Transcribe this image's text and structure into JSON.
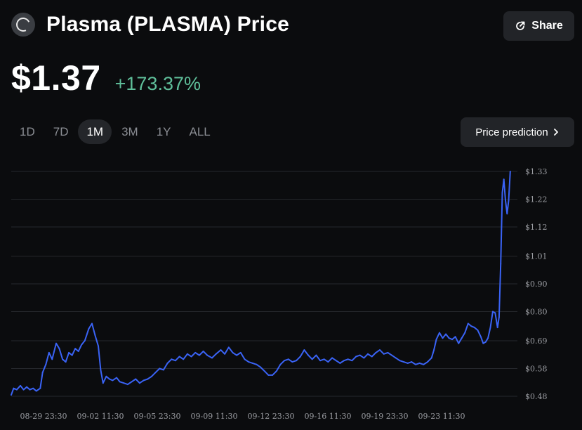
{
  "header": {
    "title": "Plasma (PLASMA) Price",
    "logo_icon": "plasma-logo-icon"
  },
  "share": {
    "label": "Share",
    "icon": "share-icon"
  },
  "price": {
    "value": "$1.37",
    "change": "+173.37%",
    "change_color": "#5fbf9a"
  },
  "periods": [
    {
      "label": "1D",
      "active": false
    },
    {
      "label": "7D",
      "active": false
    },
    {
      "label": "1M",
      "active": true
    },
    {
      "label": "3M",
      "active": false
    },
    {
      "label": "1Y",
      "active": false
    },
    {
      "label": "ALL",
      "active": false
    }
  ],
  "prediction": {
    "label": "Price prediction",
    "icon": "chevron-right-icon"
  },
  "chart_data": {
    "type": "line",
    "line_color": "#3a63f5",
    "ylim": [
      0.48,
      1.33
    ],
    "yticks": [
      {
        "value": 1.33,
        "label": "$1.33"
      },
      {
        "value": 1.225,
        "label": "$1.22"
      },
      {
        "value": 1.12,
        "label": "$1.12"
      },
      {
        "value": 1.01,
        "label": "$1.01"
      },
      {
        "value": 0.905,
        "label": "$0.90"
      },
      {
        "value": 0.8,
        "label": "$0.80"
      },
      {
        "value": 0.69,
        "label": "$0.69"
      },
      {
        "value": 0.585,
        "label": "$0.58"
      },
      {
        "value": 0.48,
        "label": "$0.48"
      }
    ],
    "xticks": [
      "08-29 23:30",
      "09-02 11:30",
      "09-05 23:30",
      "09-09 11:30",
      "09-12 23:30",
      "09-16 11:30",
      "09-19 23:30",
      "09-23 11:30"
    ],
    "xlim": [
      "08-29 11:30",
      "09-25 00:00"
    ],
    "grid": true,
    "legend": "none",
    "series": [
      {
        "points": [
          [
            "08-29 11:30",
            0.485
          ],
          [
            "08-29 14:30",
            0.51
          ],
          [
            "08-29 18:30",
            0.505
          ],
          [
            "08-29 23:00",
            0.52
          ],
          [
            "08-30 03:00",
            0.505
          ],
          [
            "08-30 07:00",
            0.515
          ],
          [
            "08-30 11:00",
            0.505
          ],
          [
            "08-30 15:00",
            0.51
          ],
          [
            "08-30 19:00",
            0.5
          ],
          [
            "08-31 00:00",
            0.51
          ],
          [
            "08-31 03:00",
            0.57
          ],
          [
            "08-31 07:00",
            0.6
          ],
          [
            "08-31 11:00",
            0.645
          ],
          [
            "08-31 15:00",
            0.62
          ],
          [
            "08-31 20:00",
            0.68
          ],
          [
            "09-01 00:00",
            0.66
          ],
          [
            "09-01 04:00",
            0.62
          ],
          [
            "09-01 08:00",
            0.61
          ],
          [
            "09-01 12:00",
            0.645
          ],
          [
            "09-01 16:00",
            0.635
          ],
          [
            "09-01 20:00",
            0.66
          ],
          [
            "09-02 00:00",
            0.65
          ],
          [
            "09-02 04:00",
            0.675
          ],
          [
            "09-02 08:00",
            0.69
          ],
          [
            "09-02 13:00",
            0.735
          ],
          [
            "09-02 17:00",
            0.755
          ],
          [
            "09-02 21:00",
            0.71
          ],
          [
            "09-03 01:00",
            0.67
          ],
          [
            "09-03 04:00",
            0.58
          ],
          [
            "09-03 07:00",
            0.53
          ],
          [
            "09-03 11:00",
            0.555
          ],
          [
            "09-03 15:00",
            0.545
          ],
          [
            "09-03 19:00",
            0.54
          ],
          [
            "09-04 00:00",
            0.55
          ],
          [
            "09-04 04:00",
            0.535
          ],
          [
            "09-04 09:00",
            0.53
          ],
          [
            "09-04 14:00",
            0.525
          ],
          [
            "09-04 19:00",
            0.535
          ],
          [
            "09-05 00:00",
            0.545
          ],
          [
            "09-05 05:00",
            0.53
          ],
          [
            "09-05 10:00",
            0.54
          ],
          [
            "09-05 15:00",
            0.545
          ],
          [
            "09-05 20:00",
            0.555
          ],
          [
            "09-06 01:00",
            0.57
          ],
          [
            "09-06 06:00",
            0.585
          ],
          [
            "09-06 11:00",
            0.58
          ],
          [
            "09-06 16:00",
            0.605
          ],
          [
            "09-06 21:00",
            0.62
          ],
          [
            "09-07 02:00",
            0.615
          ],
          [
            "09-07 07:00",
            0.63
          ],
          [
            "09-07 12:00",
            0.62
          ],
          [
            "09-07 17:00",
            0.64
          ],
          [
            "09-07 22:00",
            0.63
          ],
          [
            "09-08 03:00",
            0.645
          ],
          [
            "09-08 08:00",
            0.635
          ],
          [
            "09-08 13:00",
            0.65
          ],
          [
            "09-08 18:00",
            0.635
          ],
          [
            "09-09 00:00",
            0.625
          ],
          [
            "09-09 05:00",
            0.64
          ],
          [
            "09-09 11:00",
            0.655
          ],
          [
            "09-09 16:00",
            0.64
          ],
          [
            "09-09 21:00",
            0.665
          ],
          [
            "09-10 02:00",
            0.645
          ],
          [
            "09-10 07:00",
            0.635
          ],
          [
            "09-10 12:00",
            0.645
          ],
          [
            "09-10 17:00",
            0.62
          ],
          [
            "09-10 22:00",
            0.61
          ],
          [
            "09-11 03:00",
            0.605
          ],
          [
            "09-11 08:00",
            0.6
          ],
          [
            "09-11 13:00",
            0.59
          ],
          [
            "09-11 18:00",
            0.575
          ],
          [
            "09-11 23:00",
            0.56
          ],
          [
            "09-12 04:00",
            0.56
          ],
          [
            "09-12 09:00",
            0.575
          ],
          [
            "09-12 14:00",
            0.6
          ],
          [
            "09-12 19:00",
            0.615
          ],
          [
            "09-13 00:00",
            0.62
          ],
          [
            "09-13 05:00",
            0.61
          ],
          [
            "09-13 10:00",
            0.615
          ],
          [
            "09-13 15:00",
            0.63
          ],
          [
            "09-13 20:00",
            0.655
          ],
          [
            "09-14 01:00",
            0.635
          ],
          [
            "09-14 06:00",
            0.62
          ],
          [
            "09-14 11:00",
            0.635
          ],
          [
            "09-14 16:00",
            0.615
          ],
          [
            "09-14 21:00",
            0.62
          ],
          [
            "09-15 02:00",
            0.61
          ],
          [
            "09-15 07:00",
            0.625
          ],
          [
            "09-15 12:00",
            0.615
          ],
          [
            "09-15 17:00",
            0.605
          ],
          [
            "09-15 22:00",
            0.615
          ],
          [
            "09-16 03:00",
            0.62
          ],
          [
            "09-16 08:00",
            0.615
          ],
          [
            "09-16 13:00",
            0.63
          ],
          [
            "09-16 18:00",
            0.635
          ],
          [
            "09-16 23:00",
            0.625
          ],
          [
            "09-17 04:00",
            0.64
          ],
          [
            "09-17 09:00",
            0.63
          ],
          [
            "09-17 14:00",
            0.645
          ],
          [
            "09-17 19:00",
            0.655
          ],
          [
            "09-18 00:00",
            0.64
          ],
          [
            "09-18 05:00",
            0.645
          ],
          [
            "09-18 10:00",
            0.635
          ],
          [
            "09-18 15:00",
            0.625
          ],
          [
            "09-18 20:00",
            0.615
          ],
          [
            "09-19 01:00",
            0.61
          ],
          [
            "09-19 06:00",
            0.605
          ],
          [
            "09-19 11:00",
            0.61
          ],
          [
            "09-19 16:00",
            0.6
          ],
          [
            "09-19 21:00",
            0.605
          ],
          [
            "09-20 02:00",
            0.6
          ],
          [
            "09-20 07:00",
            0.61
          ],
          [
            "09-20 12:00",
            0.625
          ],
          [
            "09-20 15:00",
            0.655
          ],
          [
            "09-20 18:00",
            0.695
          ],
          [
            "09-20 22:00",
            0.72
          ],
          [
            "09-21 02:00",
            0.7
          ],
          [
            "09-21 06:00",
            0.715
          ],
          [
            "09-21 10:00",
            0.7
          ],
          [
            "09-21 14:00",
            0.695
          ],
          [
            "09-21 18:00",
            0.705
          ],
          [
            "09-21 22:00",
            0.68
          ],
          [
            "09-22 02:00",
            0.7
          ],
          [
            "09-22 06:00",
            0.72
          ],
          [
            "09-22 10:00",
            0.755
          ],
          [
            "09-22 14:00",
            0.745
          ],
          [
            "09-22 18:00",
            0.74
          ],
          [
            "09-22 22:00",
            0.73
          ],
          [
            "09-23 02:00",
            0.705
          ],
          [
            "09-23 05:00",
            0.68
          ],
          [
            "09-23 08:00",
            0.685
          ],
          [
            "09-23 11:00",
            0.7
          ],
          [
            "09-23 14:00",
            0.74
          ],
          [
            "09-23 17:00",
            0.8
          ],
          [
            "09-23 20:00",
            0.795
          ],
          [
            "09-23 23:00",
            0.74
          ],
          [
            "09-24 01:00",
            0.78
          ],
          [
            "09-24 03:00",
            0.98
          ],
          [
            "09-24 05:00",
            1.25
          ],
          [
            "09-24 07:00",
            1.3
          ],
          [
            "09-24 09:00",
            1.22
          ],
          [
            "09-24 11:00",
            1.17
          ],
          [
            "09-24 13:00",
            1.22
          ],
          [
            "09-24 15:00",
            1.33
          ]
        ]
      }
    ]
  }
}
